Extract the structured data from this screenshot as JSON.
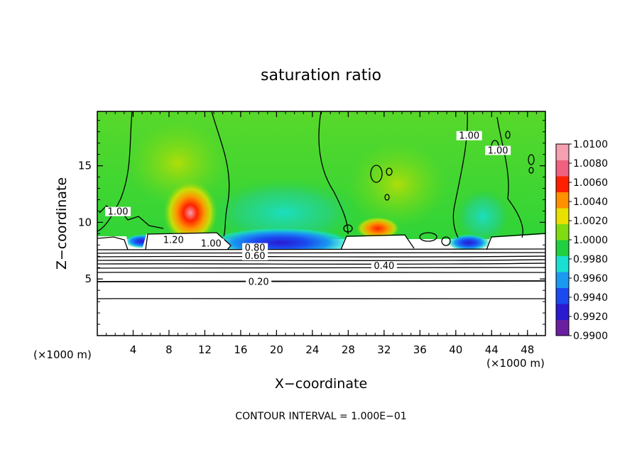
{
  "chart_data": {
    "type": "heatmap",
    "title": "saturation ratio",
    "xlabel": "X−coordinate",
    "ylabel": "Z−coordinate",
    "x_unit_left": "(×1000 m)",
    "x_unit_right": "(×1000 m)",
    "xlim": [
      0,
      50
    ],
    "ylim": [
      0,
      19.8
    ],
    "x_ticks": [
      4,
      8,
      12,
      16,
      20,
      24,
      28,
      32,
      36,
      40,
      44,
      48
    ],
    "y_ticks": [
      5,
      10,
      15
    ],
    "colorbar": {
      "range": [
        0.99,
        1.01
      ],
      "tick_values": [
        0.99,
        0.992,
        0.994,
        0.996,
        0.998,
        1.0,
        1.002,
        1.004,
        1.006,
        1.008,
        1.01
      ],
      "tick_labels": [
        "0.9900",
        "0.9920",
        "0.9940",
        "0.9960",
        "0.9980",
        "1.0000",
        "1.0020",
        "1.0040",
        "1.0060",
        "1.0080",
        "1.0100"
      ],
      "colors": [
        "#6a1fa0",
        "#2a1ad0",
        "#1a4af0",
        "#1a9af0",
        "#18e0d0",
        "#20d040",
        "#80dc10",
        "#e8e000",
        "#ff9000",
        "#ff2000",
        "#f06080",
        "#f4a0b0"
      ]
    },
    "contour_labels": [
      {
        "text": "1.20",
        "x": 8.5,
        "z": 8.3
      },
      {
        "text": "1.00",
        "x": 12.7,
        "z": 8.0
      },
      {
        "text": "0.80",
        "x": 17.6,
        "z": 7.6
      },
      {
        "text": "0.60",
        "x": 17.6,
        "z": 6.9
      },
      {
        "text": "0.40",
        "x": 32.0,
        "z": 6.0
      },
      {
        "text": "0.20",
        "x": 18.0,
        "z": 4.6
      },
      {
        "text": "1.00",
        "x": 41.5,
        "z": 17.5
      },
      {
        "text": "1.00",
        "x": 44.7,
        "z": 16.2
      },
      {
        "text": "1.00",
        "x": 2.3,
        "z": 10.8
      }
    ],
    "contour_interval_note": "CONTOUR INTERVAL = 1.000E−01"
  }
}
